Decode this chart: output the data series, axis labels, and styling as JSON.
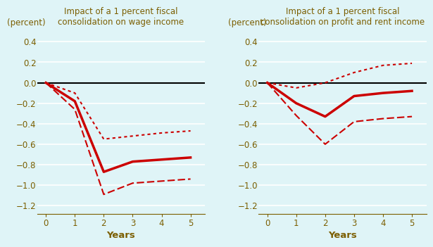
{
  "title_left": "Impact of a 1 percent fiscal\nconsolidation on wage income",
  "title_right": "Impact of a 1 percent fiscal\nconsolidation on profit and rent income",
  "ylabel": "(percent)",
  "xlabel": "Years",
  "background_color": "#dff4f7",
  "title_color": "#7B5E00",
  "axis_label_color": "#7B5E00",
  "tick_color": "#7B5E00",
  "line_color": "#CC0000",
  "ylim": [
    -1.28,
    0.52
  ],
  "yticks": [
    0.4,
    0.2,
    0,
    -0.2,
    -0.4,
    -0.6,
    -0.8,
    -1.0,
    -1.2
  ],
  "xticks": [
    0,
    1,
    2,
    3,
    4,
    5
  ],
  "years": [
    0,
    1,
    2,
    3,
    4,
    5
  ],
  "left_center": [
    0.0,
    -0.18,
    -0.87,
    -0.77,
    -0.75,
    -0.73
  ],
  "left_upper": [
    0.0,
    -0.1,
    -0.55,
    -0.52,
    -0.49,
    -0.47
  ],
  "left_lower": [
    0.0,
    -0.26,
    -1.09,
    -0.98,
    -0.96,
    -0.94
  ],
  "right_center": [
    0.0,
    -0.2,
    -0.33,
    -0.13,
    -0.1,
    -0.08
  ],
  "right_upper": [
    0.0,
    -0.05,
    0.0,
    0.1,
    0.17,
    0.19
  ],
  "right_lower": [
    0.0,
    -0.32,
    -0.6,
    -0.38,
    -0.35,
    -0.33
  ],
  "white_grid_linewidth": 1.2
}
